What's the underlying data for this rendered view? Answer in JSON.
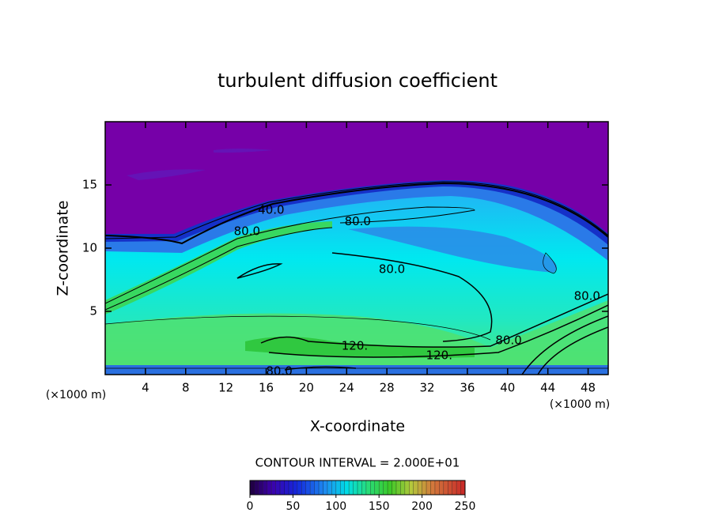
{
  "chart_data": {
    "type": "contour",
    "title": "turbulent diffusion coefficient",
    "x_label": "X-coordinate",
    "y_label": "Z-coordinate",
    "x_unit": "(×1000 m)",
    "y_unit": "(×1000 m)",
    "xlim": [
      0,
      50
    ],
    "ylim": [
      0,
      20
    ],
    "xticks": [
      4,
      8,
      12,
      16,
      20,
      24,
      28,
      32,
      36,
      40,
      44,
      48
    ],
    "yticks": [
      5,
      10,
      15
    ],
    "contour_interval_label": "CONTOUR INTERVAL = 2.000E+01",
    "contour_labels": [
      {
        "value": 40,
        "label": "40.0",
        "x": 16.5,
        "y": 13.0
      },
      {
        "value": 80,
        "label": "80.0",
        "x": 14.1,
        "y": 11.3
      },
      {
        "value": 80,
        "label": "80.0",
        "x": 25.1,
        "y": 12.1
      },
      {
        "value": 80,
        "label": "80.0",
        "x": 28.5,
        "y": 8.3
      },
      {
        "value": 80,
        "label": "80.0",
        "x": 47.9,
        "y": 6.2
      },
      {
        "value": 80,
        "label": "80.0",
        "x": 40.1,
        "y": 2.7
      },
      {
        "value": 120,
        "label": "120.",
        "x": 24.8,
        "y": 2.25
      },
      {
        "value": 120,
        "label": "120.",
        "x": 33.2,
        "y": 1.5
      },
      {
        "value": 80,
        "label": "80.0",
        "x": 17.3,
        "y": 0.25
      }
    ],
    "colorbar": {
      "lim": [
        0,
        250
      ],
      "ticks": [
        0,
        50,
        100,
        150,
        200,
        250
      ]
    }
  }
}
